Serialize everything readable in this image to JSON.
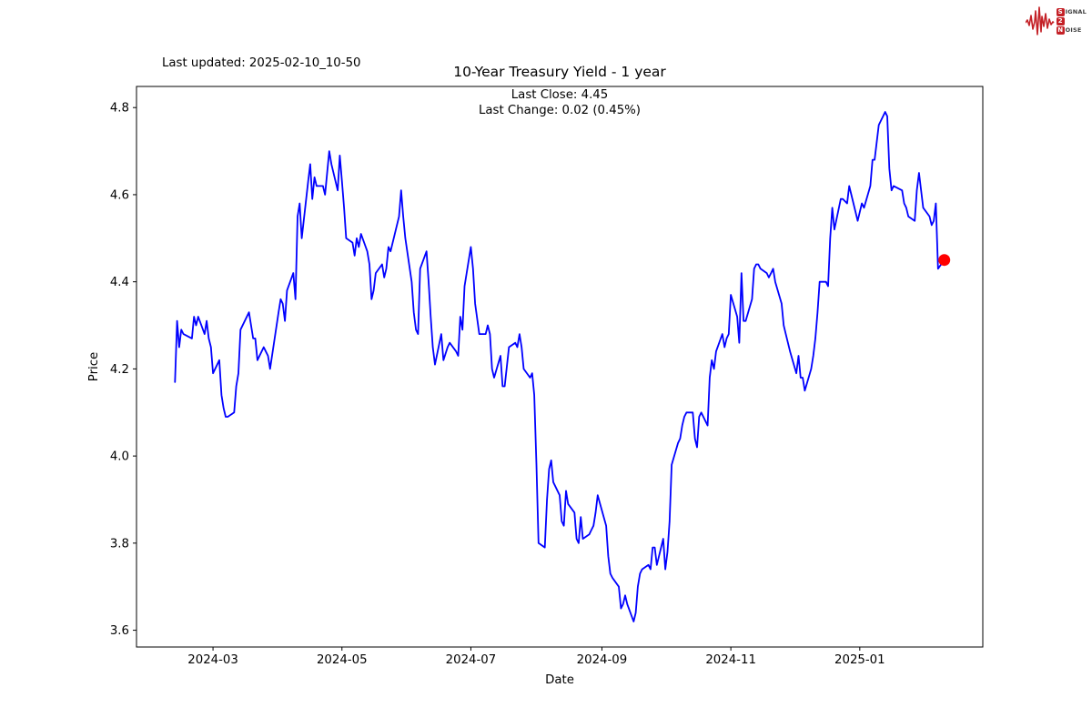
{
  "header": {
    "last_updated": "Last updated: 2025-02-10_10-50"
  },
  "logo": {
    "color": "#c42127",
    "waveform_icon": "ecg-waveform-icon",
    "rows": [
      {
        "boxed": "S",
        "rest": "IGNAL"
      },
      {
        "boxed": "2",
        "rest": ""
      },
      {
        "boxed": "N",
        "rest": "OISE"
      }
    ]
  },
  "chart_data": {
    "type": "line",
    "title": "10-Year Treasury Yield - 1 year",
    "annotation": {
      "line1": "Last Close: 4.45",
      "line2": "Last Change: 0.02 (0.45%)"
    },
    "last_close": 4.45,
    "last_change": "0.02 (0.45%)",
    "xlabel": "Date",
    "ylabel": "Price",
    "grid": false,
    "legend": "none",
    "ylim": [
      3.56,
      4.85
    ],
    "y_ticks": [
      {
        "value": 3.6,
        "label": "3.6"
      },
      {
        "value": 3.8,
        "label": "3.8"
      },
      {
        "value": 4.0,
        "label": "4.0"
      },
      {
        "value": 4.2,
        "label": "4.2"
      },
      {
        "value": 4.4,
        "label": "4.4"
      },
      {
        "value": 4.6,
        "label": "4.6"
      },
      {
        "value": 4.8,
        "label": "4.8"
      }
    ],
    "x_ticks": [
      {
        "date": "2024-03-01",
        "label": "2024-03"
      },
      {
        "date": "2024-05-01",
        "label": "2024-05"
      },
      {
        "date": "2024-07-01",
        "label": "2024-07"
      },
      {
        "date": "2024-09-01",
        "label": "2024-09"
      },
      {
        "date": "2024-11-01",
        "label": "2024-11"
      },
      {
        "date": "2025-01-01",
        "label": "2025-01"
      }
    ],
    "last_marker_color": "#ff0000",
    "series": [
      {
        "name": "10-Year Treasury Yield",
        "color": "#0000ff",
        "points": [
          [
            "2024-02-12",
            4.17
          ],
          [
            "2024-02-13",
            4.31
          ],
          [
            "2024-02-14",
            4.25
          ],
          [
            "2024-02-15",
            4.29
          ],
          [
            "2024-02-16",
            4.28
          ],
          [
            "2024-02-20",
            4.27
          ],
          [
            "2024-02-21",
            4.32
          ],
          [
            "2024-02-22",
            4.3
          ],
          [
            "2024-02-23",
            4.32
          ],
          [
            "2024-02-26",
            4.28
          ],
          [
            "2024-02-27",
            4.31
          ],
          [
            "2024-02-28",
            4.27
          ],
          [
            "2024-02-29",
            4.25
          ],
          [
            "2024-03-01",
            4.19
          ],
          [
            "2024-03-04",
            4.22
          ],
          [
            "2024-03-05",
            4.14
          ],
          [
            "2024-03-06",
            4.11
          ],
          [
            "2024-03-07",
            4.09
          ],
          [
            "2024-03-08",
            4.09
          ],
          [
            "2024-03-11",
            4.1
          ],
          [
            "2024-03-12",
            4.16
          ],
          [
            "2024-03-13",
            4.19
          ],
          [
            "2024-03-14",
            4.29
          ],
          [
            "2024-03-18",
            4.33
          ],
          [
            "2024-03-19",
            4.3
          ],
          [
            "2024-03-20",
            4.27
          ],
          [
            "2024-03-21",
            4.27
          ],
          [
            "2024-03-22",
            4.22
          ],
          [
            "2024-03-25",
            4.25
          ],
          [
            "2024-03-26",
            4.24
          ],
          [
            "2024-03-27",
            4.23
          ],
          [
            "2024-03-28",
            4.2
          ],
          [
            "2024-04-01",
            4.33
          ],
          [
            "2024-04-02",
            4.36
          ],
          [
            "2024-04-03",
            4.35
          ],
          [
            "2024-04-04",
            4.31
          ],
          [
            "2024-04-05",
            4.38
          ],
          [
            "2024-04-08",
            4.42
          ],
          [
            "2024-04-09",
            4.36
          ],
          [
            "2024-04-10",
            4.55
          ],
          [
            "2024-04-11",
            4.58
          ],
          [
            "2024-04-12",
            4.5
          ],
          [
            "2024-04-15",
            4.63
          ],
          [
            "2024-04-16",
            4.67
          ],
          [
            "2024-04-17",
            4.59
          ],
          [
            "2024-04-18",
            4.64
          ],
          [
            "2024-04-19",
            4.62
          ],
          [
            "2024-04-22",
            4.62
          ],
          [
            "2024-04-23",
            4.6
          ],
          [
            "2024-04-24",
            4.65
          ],
          [
            "2024-04-25",
            4.7
          ],
          [
            "2024-04-26",
            4.67
          ],
          [
            "2024-04-29",
            4.61
          ],
          [
            "2024-04-30",
            4.69
          ],
          [
            "2024-05-01",
            4.63
          ],
          [
            "2024-05-02",
            4.57
          ],
          [
            "2024-05-03",
            4.5
          ],
          [
            "2024-05-06",
            4.49
          ],
          [
            "2024-05-07",
            4.46
          ],
          [
            "2024-05-08",
            4.5
          ],
          [
            "2024-05-09",
            4.48
          ],
          [
            "2024-05-10",
            4.51
          ],
          [
            "2024-05-13",
            4.47
          ],
          [
            "2024-05-14",
            4.44
          ],
          [
            "2024-05-15",
            4.36
          ],
          [
            "2024-05-16",
            4.38
          ],
          [
            "2024-05-17",
            4.42
          ],
          [
            "2024-05-20",
            4.44
          ],
          [
            "2024-05-21",
            4.41
          ],
          [
            "2024-05-22",
            4.43
          ],
          [
            "2024-05-23",
            4.48
          ],
          [
            "2024-05-24",
            4.47
          ],
          [
            "2024-05-28",
            4.55
          ],
          [
            "2024-05-29",
            4.61
          ],
          [
            "2024-05-30",
            4.55
          ],
          [
            "2024-05-31",
            4.5
          ],
          [
            "2024-06-03",
            4.4
          ],
          [
            "2024-06-04",
            4.33
          ],
          [
            "2024-06-05",
            4.29
          ],
          [
            "2024-06-06",
            4.28
          ],
          [
            "2024-06-07",
            4.43
          ],
          [
            "2024-06-10",
            4.47
          ],
          [
            "2024-06-11",
            4.4
          ],
          [
            "2024-06-12",
            4.32
          ],
          [
            "2024-06-13",
            4.25
          ],
          [
            "2024-06-14",
            4.21
          ],
          [
            "2024-06-17",
            4.28
          ],
          [
            "2024-06-18",
            4.22
          ],
          [
            "2024-06-20",
            4.25
          ],
          [
            "2024-06-21",
            4.26
          ],
          [
            "2024-06-24",
            4.24
          ],
          [
            "2024-06-25",
            4.23
          ],
          [
            "2024-06-26",
            4.32
          ],
          [
            "2024-06-27",
            4.29
          ],
          [
            "2024-06-28",
            4.39
          ],
          [
            "2024-07-01",
            4.48
          ],
          [
            "2024-07-02",
            4.43
          ],
          [
            "2024-07-03",
            4.35
          ],
          [
            "2024-07-05",
            4.28
          ],
          [
            "2024-07-08",
            4.28
          ],
          [
            "2024-07-09",
            4.3
          ],
          [
            "2024-07-10",
            4.28
          ],
          [
            "2024-07-11",
            4.2
          ],
          [
            "2024-07-12",
            4.18
          ],
          [
            "2024-07-15",
            4.23
          ],
          [
            "2024-07-16",
            4.16
          ],
          [
            "2024-07-17",
            4.16
          ],
          [
            "2024-07-19",
            4.25
          ],
          [
            "2024-07-22",
            4.26
          ],
          [
            "2024-07-23",
            4.25
          ],
          [
            "2024-07-24",
            4.28
          ],
          [
            "2024-07-25",
            4.25
          ],
          [
            "2024-07-26",
            4.2
          ],
          [
            "2024-07-29",
            4.18
          ],
          [
            "2024-07-30",
            4.19
          ],
          [
            "2024-07-31",
            4.14
          ],
          [
            "2024-08-01",
            3.98
          ],
          [
            "2024-08-02",
            3.8
          ],
          [
            "2024-08-05",
            3.79
          ],
          [
            "2024-08-06",
            3.9
          ],
          [
            "2024-08-07",
            3.97
          ],
          [
            "2024-08-08",
            3.99
          ],
          [
            "2024-08-09",
            3.94
          ],
          [
            "2024-08-12",
            3.91
          ],
          [
            "2024-08-13",
            3.85
          ],
          [
            "2024-08-14",
            3.84
          ],
          [
            "2024-08-15",
            3.92
          ],
          [
            "2024-08-16",
            3.89
          ],
          [
            "2024-08-19",
            3.87
          ],
          [
            "2024-08-20",
            3.81
          ],
          [
            "2024-08-21",
            3.8
          ],
          [
            "2024-08-22",
            3.86
          ],
          [
            "2024-08-23",
            3.81
          ],
          [
            "2024-08-26",
            3.82
          ],
          [
            "2024-08-27",
            3.83
          ],
          [
            "2024-08-28",
            3.84
          ],
          [
            "2024-08-29",
            3.87
          ],
          [
            "2024-08-30",
            3.91
          ],
          [
            "2024-09-03",
            3.84
          ],
          [
            "2024-09-04",
            3.77
          ],
          [
            "2024-09-05",
            3.73
          ],
          [
            "2024-09-06",
            3.72
          ],
          [
            "2024-09-09",
            3.7
          ],
          [
            "2024-09-10",
            3.65
          ],
          [
            "2024-09-11",
            3.66
          ],
          [
            "2024-09-12",
            3.68
          ],
          [
            "2024-09-13",
            3.66
          ],
          [
            "2024-09-16",
            3.62
          ],
          [
            "2024-09-17",
            3.64
          ],
          [
            "2024-09-18",
            3.7
          ],
          [
            "2024-09-19",
            3.73
          ],
          [
            "2024-09-20",
            3.74
          ],
          [
            "2024-09-23",
            3.75
          ],
          [
            "2024-09-24",
            3.74
          ],
          [
            "2024-09-25",
            3.79
          ],
          [
            "2024-09-26",
            3.79
          ],
          [
            "2024-09-27",
            3.75
          ],
          [
            "2024-09-30",
            3.81
          ],
          [
            "2024-10-01",
            3.74
          ],
          [
            "2024-10-02",
            3.78
          ],
          [
            "2024-10-03",
            3.85
          ],
          [
            "2024-10-04",
            3.98
          ],
          [
            "2024-10-07",
            4.03
          ],
          [
            "2024-10-08",
            4.04
          ],
          [
            "2024-10-09",
            4.07
          ],
          [
            "2024-10-10",
            4.09
          ],
          [
            "2024-10-11",
            4.1
          ],
          [
            "2024-10-14",
            4.1
          ],
          [
            "2024-10-15",
            4.04
          ],
          [
            "2024-10-16",
            4.02
          ],
          [
            "2024-10-17",
            4.09
          ],
          [
            "2024-10-18",
            4.1
          ],
          [
            "2024-10-21",
            4.07
          ],
          [
            "2024-10-22",
            4.18
          ],
          [
            "2024-10-23",
            4.22
          ],
          [
            "2024-10-24",
            4.2
          ],
          [
            "2024-10-25",
            4.24
          ],
          [
            "2024-10-28",
            4.28
          ],
          [
            "2024-10-29",
            4.25
          ],
          [
            "2024-10-30",
            4.27
          ],
          [
            "2024-10-31",
            4.28
          ],
          [
            "2024-11-01",
            4.37
          ],
          [
            "2024-11-04",
            4.32
          ],
          [
            "2024-11-05",
            4.26
          ],
          [
            "2024-11-06",
            4.42
          ],
          [
            "2024-11-07",
            4.31
          ],
          [
            "2024-11-08",
            4.31
          ],
          [
            "2024-11-11",
            4.36
          ],
          [
            "2024-11-12",
            4.43
          ],
          [
            "2024-11-13",
            4.44
          ],
          [
            "2024-11-14",
            4.44
          ],
          [
            "2024-11-15",
            4.43
          ],
          [
            "2024-11-18",
            4.42
          ],
          [
            "2024-11-19",
            4.41
          ],
          [
            "2024-11-20",
            4.42
          ],
          [
            "2024-11-21",
            4.43
          ],
          [
            "2024-11-22",
            4.4
          ],
          [
            "2024-11-25",
            4.35
          ],
          [
            "2024-11-26",
            4.3
          ],
          [
            "2024-11-27",
            4.28
          ],
          [
            "2024-11-29",
            4.24
          ],
          [
            "2024-12-02",
            4.19
          ],
          [
            "2024-12-03",
            4.23
          ],
          [
            "2024-12-04",
            4.18
          ],
          [
            "2024-12-05",
            4.18
          ],
          [
            "2024-12-06",
            4.15
          ],
          [
            "2024-12-09",
            4.2
          ],
          [
            "2024-12-10",
            4.23
          ],
          [
            "2024-12-11",
            4.27
          ],
          [
            "2024-12-12",
            4.33
          ],
          [
            "2024-12-13",
            4.4
          ],
          [
            "2024-12-16",
            4.4
          ],
          [
            "2024-12-17",
            4.39
          ],
          [
            "2024-12-18",
            4.5
          ],
          [
            "2024-12-19",
            4.57
          ],
          [
            "2024-12-20",
            4.52
          ],
          [
            "2024-12-23",
            4.59
          ],
          [
            "2024-12-24",
            4.59
          ],
          [
            "2024-12-26",
            4.58
          ],
          [
            "2024-12-27",
            4.62
          ],
          [
            "2024-12-30",
            4.56
          ],
          [
            "2024-12-31",
            4.54
          ],
          [
            "2025-01-02",
            4.58
          ],
          [
            "2025-01-03",
            4.57
          ],
          [
            "2025-01-06",
            4.62
          ],
          [
            "2025-01-07",
            4.68
          ],
          [
            "2025-01-08",
            4.68
          ],
          [
            "2025-01-10",
            4.76
          ],
          [
            "2025-01-13",
            4.79
          ],
          [
            "2025-01-14",
            4.78
          ],
          [
            "2025-01-15",
            4.66
          ],
          [
            "2025-01-16",
            4.61
          ],
          [
            "2025-01-17",
            4.62
          ],
          [
            "2025-01-21",
            4.61
          ],
          [
            "2025-01-22",
            4.58
          ],
          [
            "2025-01-23",
            4.57
          ],
          [
            "2025-01-24",
            4.55
          ],
          [
            "2025-01-27",
            4.54
          ],
          [
            "2025-01-28",
            4.61
          ],
          [
            "2025-01-29",
            4.65
          ],
          [
            "2025-01-30",
            4.61
          ],
          [
            "2025-01-31",
            4.57
          ],
          [
            "2025-02-03",
            4.55
          ],
          [
            "2025-02-04",
            4.53
          ],
          [
            "2025-02-05",
            4.54
          ],
          [
            "2025-02-06",
            4.58
          ],
          [
            "2025-02-07",
            4.43
          ],
          [
            "2025-02-10",
            4.45
          ]
        ]
      }
    ]
  }
}
